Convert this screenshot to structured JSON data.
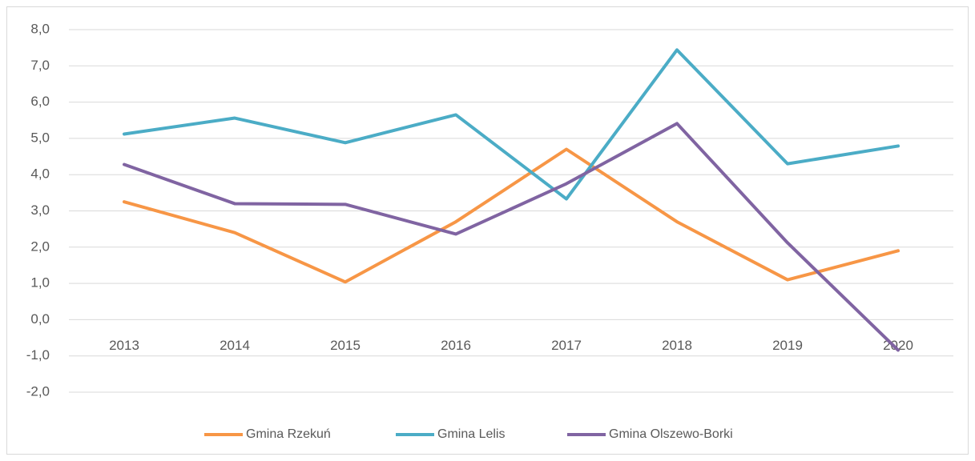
{
  "chart_data": {
    "type": "line",
    "categories": [
      "2013",
      "2014",
      "2015",
      "2016",
      "2017",
      "2018",
      "2019",
      "2020"
    ],
    "series": [
      {
        "name": "Gmina Rzekuń",
        "color": "#f79646",
        "values": [
          3.25,
          2.4,
          1.04,
          2.7,
          4.7,
          2.7,
          1.1,
          1.9
        ]
      },
      {
        "name": "Gmina Lelis",
        "color": "#4bacc6",
        "values": [
          5.12,
          5.56,
          4.88,
          5.65,
          3.33,
          7.44,
          4.3,
          4.79
        ]
      },
      {
        "name": "Gmina Olszewo-Borki",
        "color": "#8064a2",
        "values": [
          4.28,
          3.2,
          3.18,
          2.36,
          3.75,
          5.41,
          2.12,
          -0.84
        ]
      }
    ],
    "ylim": [
      -2,
      8
    ],
    "yticks": [
      {
        "value": -2,
        "label": "-2,0"
      },
      {
        "value": -1,
        "label": "-1,0"
      },
      {
        "value": 0,
        "label": "0,0"
      },
      {
        "value": 1,
        "label": "1,0"
      },
      {
        "value": 2,
        "label": "2,0"
      },
      {
        "value": 3,
        "label": "3,0"
      },
      {
        "value": 4,
        "label": "4,0"
      },
      {
        "value": 5,
        "label": "5,0"
      },
      {
        "value": 6,
        "label": "6,0"
      },
      {
        "value": 7,
        "label": "7,0"
      },
      {
        "value": 8,
        "label": "8,0"
      }
    ],
    "grid": true,
    "legend": "bottom"
  }
}
